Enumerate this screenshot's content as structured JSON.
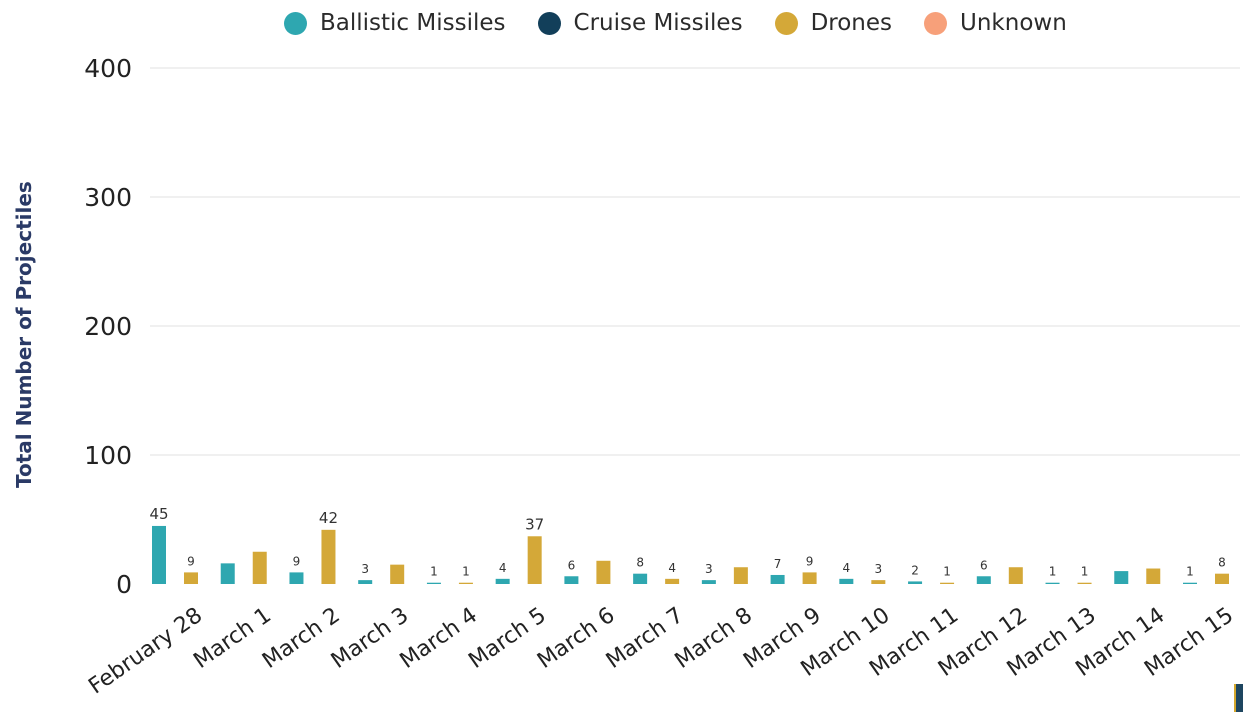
{
  "legend": [
    {
      "name": "Ballistic Missiles",
      "color": "#2ea7b0"
    },
    {
      "name": "Cruise Missiles",
      "color": "#123f5a"
    },
    {
      "name": "Drones",
      "color": "#d4a838"
    },
    {
      "name": "Unknown",
      "color": "#f7a07a"
    }
  ],
  "chart_data": {
    "type": "bar",
    "ylabel": "Total Number of Projectiles",
    "xlabel": "",
    "ylim": [
      0,
      400
    ],
    "yticks": [
      0,
      100,
      200,
      300,
      400
    ],
    "grid": true,
    "legend_position": "top",
    "categories": [
      "February 28",
      "March 1",
      "March 2",
      "March 3",
      "March 4",
      "March 5",
      "March 6",
      "March 7",
      "March 8",
      "March 9",
      "March 10",
      "March 11",
      "March 12",
      "March 13",
      "March 14",
      "March 15"
    ],
    "series": [
      {
        "name": "Ballistic Missiles",
        "color": "#2ea7b0",
        "values": [
          45,
          16,
          9,
          3,
          1,
          4,
          6,
          8,
          3,
          7,
          4,
          2,
          6,
          1,
          10,
          1
        ],
        "labels": [
          "45",
          "",
          "9",
          "3",
          "1",
          "4",
          "6",
          "8",
          "3",
          "7",
          "4",
          "2",
          "6",
          "1",
          "",
          "1"
        ]
      },
      {
        "name": "Drones",
        "color": "#d4a838",
        "values": [
          9,
          25,
          42,
          15,
          1,
          37,
          18,
          4,
          13,
          9,
          3,
          1,
          13,
          1,
          12,
          8
        ],
        "labels": [
          "9",
          "",
          "42",
          "",
          "1",
          "37",
          "",
          "4",
          "",
          "9",
          "3",
          "1",
          "",
          "1",
          "",
          "8"
        ]
      }
    ]
  }
}
